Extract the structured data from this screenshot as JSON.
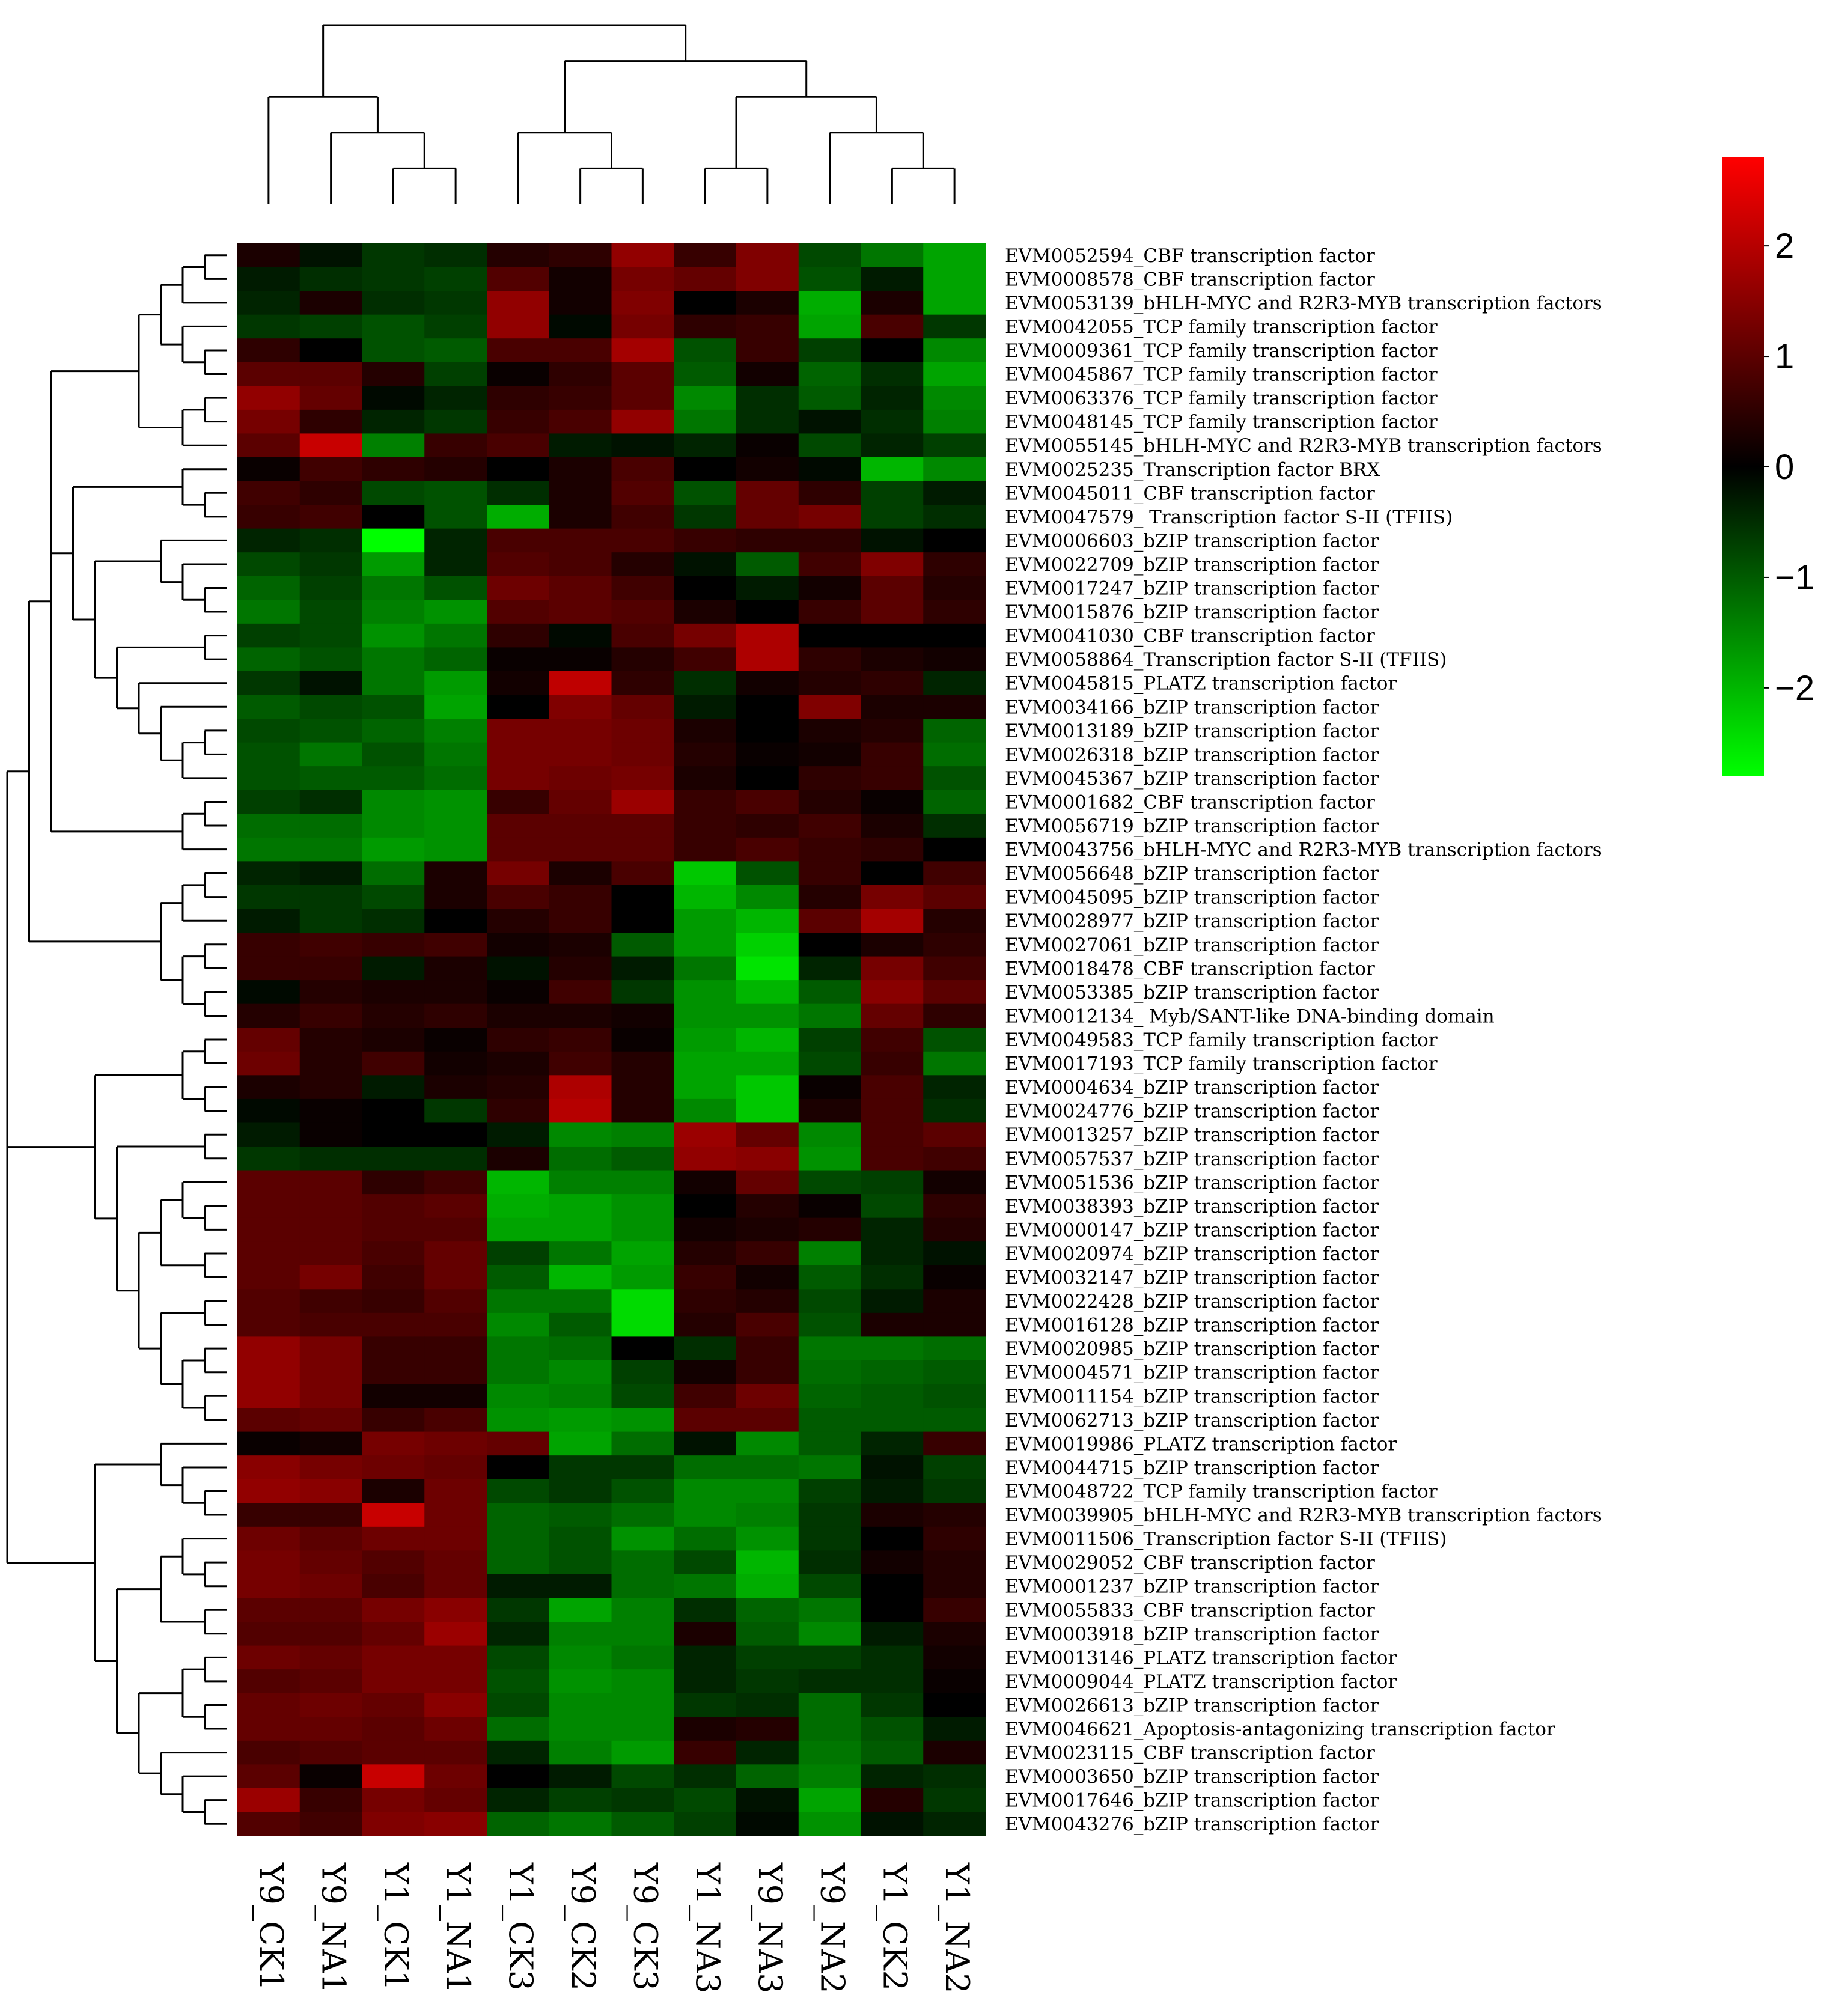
{
  "chart_data": {
    "type": "heatmap",
    "title": "",
    "xlabel": "",
    "ylabel": "",
    "columns": [
      "Y9_CK1",
      "Y9_NA1",
      "Y1_CK1",
      "Y1_NA1",
      "Y1_CK3",
      "Y9_CK2",
      "Y9_CK3",
      "Y1_NA3",
      "Y9_NA3",
      "Y9_NA2",
      "Y1_CK2",
      "Y1_NA2"
    ],
    "rows": [
      "EVM0052594_CBF transcription factor",
      "EVM0008578_CBF transcription factor",
      "EVM0053139_bHLH-MYC and R2R3-MYB transcription factors",
      "EVM0042055_TCP family transcription factor",
      "EVM0009361_TCP family transcription factor",
      "EVM0045867_TCP family transcription factor",
      "EVM0063376_TCP family transcription factor",
      "EVM0048145_TCP family transcription factor",
      "EVM0055145_bHLH-MYC and R2R3-MYB transcription factors",
      "EVM0025235_Transcription factor BRX",
      "EVM0045011_CBF transcription factor",
      "EVM0047579_ Transcription factor S-II (TFIIS)",
      "EVM0006603_bZIP transcription factor",
      "EVM0022709_bZIP transcription factor",
      "EVM0017247_bZIP transcription factor",
      "EVM0015876_bZIP transcription factor",
      "EVM0041030_CBF transcription factor",
      "EVM0058864_Transcription factor S-II (TFIIS)",
      "EVM0045815_PLATZ transcription factor",
      "EVM0034166_bZIP transcription factor",
      "EVM0013189_bZIP transcription factor",
      "EVM0026318_bZIP transcription factor",
      "EVM0045367_bZIP transcription factor",
      "EVM0001682_CBF transcription factor",
      "EVM0056719_bZIP transcription factor",
      "EVM0043756_bHLH-MYC and R2R3-MYB transcription factors",
      "EVM0056648_bZIP transcription factor",
      "EVM0045095_bZIP transcription factor",
      "EVM0028977_bZIP transcription factor",
      "EVM0027061_bZIP transcription factor",
      "EVM0018478_CBF transcription factor",
      "EVM0053385_bZIP transcription factor",
      "EVM0012134_ Myb/SANT-like DNA-binding domain",
      "EVM0049583_TCP family transcription factor",
      "EVM0017193_TCP family transcription factor",
      "EVM0004634_bZIP transcription factor",
      "EVM0024776_bZIP transcription factor",
      "EVM0013257_bZIP transcription factor",
      "EVM0057537_bZIP transcription factor",
      "EVM0051536_bZIP transcription factor",
      "EVM0038393_bZIP transcription factor",
      "EVM0000147_bZIP transcription factor",
      "EVM0020974_bZIP transcription factor",
      "EVM0032147_bZIP transcription factor",
      "EVM0022428_bZIP transcription factor",
      "EVM0016128_bZIP transcription factor",
      "EVM0020985_bZIP transcription factor",
      "EVM0004571_bZIP transcription factor",
      "EVM0011154_bZIP transcription factor",
      "EVM0062713_bZIP transcription factor",
      "EVM0019986_PLATZ transcription factor",
      "EVM0044715_bZIP transcription factor",
      "EVM0048722_TCP family transcription factor",
      "EVM0039905_bHLH-MYC and R2R3-MYB transcription factors",
      "EVM0011506_Transcription factor S-II (TFIIS)",
      "EVM0029052_CBF transcription factor",
      "EVM0001237_bZIP transcription factor",
      "EVM0055833_CBF transcription factor",
      "EVM0003918_bZIP transcription factor",
      "EVM0013146_PLATZ transcription factor",
      "EVM0009044_PLATZ transcription factor",
      "EVM0026613_bZIP transcription factor",
      "EVM0046621_Apoptosis-antagonizing transcription factor",
      "EVM0023115_CBF transcription factor",
      "EVM0003650_bZIP transcription factor",
      "EVM0017646_bZIP transcription factor",
      "EVM0043276_bZIP transcription factor"
    ],
    "values": [
      [
        0.3,
        -0.2,
        -0.6,
        -0.5,
        0.4,
        0.5,
        1.6,
        0.6,
        1.4,
        -0.8,
        -1.3,
        -1.8
      ],
      [
        -0.3,
        -0.5,
        -0.6,
        -0.7,
        0.9,
        0.2,
        1.3,
        1.1,
        1.4,
        -0.9,
        -0.3,
        -1.8
      ],
      [
        -0.4,
        0.3,
        -0.5,
        -0.6,
        1.6,
        0.2,
        1.4,
        0.0,
        0.3,
        -1.9,
        0.3,
        -1.8
      ],
      [
        -0.6,
        -0.7,
        -0.9,
        -0.7,
        1.6,
        -0.1,
        1.3,
        0.5,
        0.6,
        -1.8,
        0.8,
        -0.6
      ],
      [
        0.5,
        0.0,
        -0.9,
        -1.0,
        0.8,
        0.8,
        1.8,
        -0.9,
        0.6,
        -0.7,
        0.0,
        -1.5
      ],
      [
        1.0,
        1.0,
        0.4,
        -0.7,
        0.1,
        0.5,
        1.0,
        -1.0,
        0.2,
        -1.1,
        -0.5,
        -1.8
      ],
      [
        1.6,
        1.1,
        -0.1,
        -0.4,
        0.5,
        0.6,
        1.0,
        -1.5,
        -0.5,
        -1.0,
        -0.4,
        -1.5
      ],
      [
        1.3,
        0.5,
        -0.4,
        -0.6,
        0.6,
        0.8,
        1.6,
        -1.3,
        -0.5,
        -0.2,
        -0.5,
        -1.4
      ],
      [
        1.0,
        2.2,
        -1.4,
        0.6,
        0.8,
        -0.3,
        -0.2,
        -0.4,
        0.1,
        -0.8,
        -0.4,
        -0.7
      ],
      [
        0.1,
        0.7,
        0.5,
        0.4,
        0.0,
        0.3,
        0.8,
        0.0,
        0.2,
        -0.1,
        -2.0,
        -1.5
      ],
      [
        0.7,
        0.5,
        -0.8,
        -0.9,
        -0.5,
        0.3,
        0.9,
        -0.9,
        1.1,
        0.5,
        -0.7,
        -0.3
      ],
      [
        0.6,
        0.7,
        0.0,
        -0.9,
        -1.9,
        0.3,
        0.7,
        -0.6,
        1.1,
        1.3,
        -0.7,
        -0.5
      ],
      [
        -0.4,
        -0.5,
        -2.8,
        -0.4,
        0.8,
        0.8,
        0.8,
        0.6,
        0.5,
        0.5,
        -0.2,
        0.0
      ],
      [
        -0.8,
        -0.6,
        -1.7,
        -0.4,
        0.9,
        0.8,
        0.4,
        -0.2,
        -1.0,
        0.7,
        1.4,
        0.5
      ],
      [
        -1.1,
        -0.7,
        -1.3,
        -0.9,
        1.2,
        1.0,
        0.7,
        0.0,
        -0.3,
        0.2,
        1.0,
        0.4
      ],
      [
        -1.3,
        -0.8,
        -1.4,
        -1.6,
        0.9,
        1.0,
        0.9,
        0.3,
        0.0,
        0.6,
        1.0,
        0.5
      ],
      [
        -0.7,
        -0.8,
        -1.6,
        -1.3,
        0.5,
        -0.1,
        0.8,
        1.3,
        1.9,
        0.0,
        0.0,
        0.0
      ],
      [
        -1.1,
        -0.9,
        -1.3,
        -1.1,
        0.1,
        0.1,
        0.4,
        0.7,
        1.9,
        0.5,
        0.3,
        0.2
      ],
      [
        -0.6,
        -0.2,
        -1.3,
        -1.7,
        0.2,
        2.1,
        0.5,
        -0.5,
        0.2,
        0.4,
        0.5,
        -0.4
      ],
      [
        -1.0,
        -0.8,
        -0.9,
        -1.8,
        0.0,
        1.4,
        1.1,
        -0.3,
        0.0,
        1.4,
        0.3,
        0.3
      ],
      [
        -0.8,
        -0.9,
        -1.1,
        -1.4,
        1.3,
        1.3,
        1.2,
        0.3,
        0.0,
        0.3,
        0.4,
        -1.1
      ],
      [
        -0.9,
        -1.3,
        -0.9,
        -1.3,
        1.3,
        1.3,
        1.2,
        0.4,
        0.1,
        0.2,
        0.6,
        -1.2
      ],
      [
        -0.9,
        -1.0,
        -1.0,
        -1.2,
        1.3,
        1.2,
        1.3,
        0.3,
        0.0,
        0.5,
        0.6,
        -0.9
      ],
      [
        -0.7,
        -0.5,
        -1.5,
        -1.6,
        0.6,
        1.1,
        1.7,
        0.6,
        0.8,
        0.4,
        0.1,
        -1.1
      ],
      [
        -1.2,
        -1.2,
        -1.5,
        -1.6,
        1.0,
        1.0,
        1.0,
        0.6,
        0.5,
        0.7,
        0.3,
        -0.5
      ],
      [
        -1.3,
        -1.3,
        -1.7,
        -1.6,
        1.0,
        1.0,
        1.0,
        0.6,
        0.8,
        0.6,
        0.5,
        0.0
      ],
      [
        -0.4,
        -0.3,
        -1.2,
        0.3,
        1.3,
        0.3,
        0.8,
        -2.2,
        -0.9,
        0.6,
        0.0,
        0.7
      ],
      [
        -0.6,
        -0.6,
        -0.8,
        0.3,
        0.8,
        0.6,
        0.0,
        -2.0,
        -1.5,
        0.4,
        1.3,
        1.0
      ],
      [
        -0.3,
        -0.6,
        -0.5,
        0.0,
        0.4,
        0.6,
        0.0,
        -1.7,
        -2.0,
        1.0,
        1.8,
        0.4
      ],
      [
        0.6,
        0.7,
        0.6,
        0.7,
        0.2,
        0.3,
        -1.0,
        -1.7,
        -2.3,
        0.0,
        0.3,
        0.5
      ],
      [
        0.6,
        0.6,
        -0.3,
        0.3,
        -0.2,
        0.4,
        -0.3,
        -1.3,
        -2.5,
        -0.4,
        1.3,
        0.7
      ],
      [
        -0.1,
        0.4,
        0.3,
        0.3,
        0.1,
        0.7,
        -0.6,
        -1.6,
        -2.0,
        -1.0,
        1.5,
        1.0
      ],
      [
        0.4,
        0.6,
        0.4,
        0.5,
        0.3,
        0.3,
        0.2,
        -1.6,
        -1.6,
        -1.3,
        1.1,
        0.5
      ],
      [
        1.1,
        0.4,
        0.3,
        0.1,
        0.5,
        0.6,
        0.1,
        -1.7,
        -2.0,
        -0.7,
        0.7,
        -0.9
      ],
      [
        1.2,
        0.4,
        0.7,
        0.2,
        0.3,
        0.7,
        0.4,
        -1.8,
        -1.8,
        -0.8,
        0.6,
        -1.3
      ],
      [
        0.3,
        0.4,
        -0.3,
        0.3,
        0.4,
        1.9,
        0.4,
        -1.8,
        -2.2,
        0.1,
        0.8,
        -0.4
      ],
      [
        -0.1,
        0.1,
        0.0,
        -0.6,
        0.5,
        2.0,
        0.4,
        -1.5,
        -2.2,
        0.3,
        0.8,
        -0.5
      ],
      [
        -0.3,
        0.1,
        0.0,
        0.0,
        -0.3,
        -1.5,
        -1.4,
        1.7,
        1.1,
        -1.5,
        0.8,
        1.0
      ],
      [
        -0.6,
        -0.5,
        -0.5,
        -0.5,
        0.3,
        -1.2,
        -1.0,
        1.6,
        1.5,
        -1.6,
        0.8,
        0.7
      ],
      [
        1.0,
        1.0,
        0.5,
        0.7,
        -2.0,
        -1.4,
        -1.4,
        0.2,
        1.1,
        -0.8,
        -0.7,
        0.2
      ],
      [
        1.0,
        1.0,
        0.9,
        1.0,
        -1.9,
        -1.8,
        -1.6,
        0.0,
        0.4,
        0.1,
        -0.8,
        0.5
      ],
      [
        1.0,
        1.0,
        0.9,
        0.9,
        -1.8,
        -1.8,
        -1.6,
        0.2,
        0.3,
        0.4,
        -0.4,
        0.4
      ],
      [
        1.0,
        1.0,
        0.8,
        1.1,
        -0.7,
        -1.3,
        -1.8,
        0.4,
        0.6,
        -1.4,
        -0.4,
        -0.2
      ],
      [
        1.0,
        1.3,
        0.7,
        1.1,
        -1.0,
        -2.0,
        -1.7,
        0.6,
        0.2,
        -1.0,
        -0.5,
        0.1
      ],
      [
        0.9,
        0.7,
        0.6,
        0.9,
        -1.3,
        -1.3,
        -2.4,
        0.5,
        0.4,
        -0.8,
        -0.3,
        0.3
      ],
      [
        0.9,
        0.8,
        0.8,
        0.8,
        -1.5,
        -1.0,
        -2.4,
        0.4,
        0.8,
        -0.9,
        0.3,
        0.3
      ],
      [
        1.6,
        1.3,
        0.6,
        0.6,
        -1.3,
        -1.2,
        0.0,
        -0.5,
        0.6,
        -1.3,
        -1.3,
        -1.2
      ],
      [
        1.6,
        1.3,
        0.6,
        0.6,
        -1.3,
        -1.5,
        -0.7,
        0.2,
        0.6,
        -1.2,
        -1.1,
        -1.0
      ],
      [
        1.6,
        1.3,
        0.2,
        0.2,
        -1.5,
        -1.4,
        -0.8,
        0.7,
        1.2,
        -1.1,
        -1.0,
        -0.9
      ],
      [
        1.0,
        1.1,
        0.6,
        0.8,
        -1.6,
        -1.7,
        -1.6,
        1.0,
        1.0,
        -1.0,
        -1.0,
        -1.0
      ],
      [
        0.1,
        0.2,
        1.3,
        1.2,
        1.1,
        -1.8,
        -1.2,
        -0.2,
        -1.5,
        -1.0,
        -0.4,
        0.6
      ],
      [
        1.5,
        1.3,
        1.2,
        1.1,
        0.0,
        -0.6,
        -0.6,
        -1.2,
        -1.2,
        -1.3,
        -0.2,
        -0.7
      ],
      [
        1.6,
        1.5,
        0.3,
        1.2,
        -0.8,
        -0.6,
        -0.9,
        -1.5,
        -1.5,
        -0.7,
        -0.3,
        -0.6
      ],
      [
        0.6,
        0.6,
        2.2,
        1.2,
        -1.1,
        -1.0,
        -1.2,
        -1.5,
        -1.4,
        -0.6,
        0.3,
        0.4
      ],
      [
        1.2,
        1.0,
        1.2,
        1.2,
        -1.1,
        -0.9,
        -1.6,
        -1.2,
        -1.6,
        -0.6,
        0.0,
        0.5
      ],
      [
        1.3,
        1.1,
        0.9,
        1.1,
        -1.1,
        -0.9,
        -1.2,
        -0.8,
        -2.0,
        -0.5,
        0.2,
        0.4
      ],
      [
        1.3,
        1.2,
        0.8,
        1.1,
        -0.3,
        -0.3,
        -1.2,
        -1.3,
        -1.9,
        -0.8,
        0.0,
        0.4
      ],
      [
        1.0,
        1.0,
        1.3,
        1.5,
        -0.6,
        -1.8,
        -1.4,
        -0.5,
        -1.1,
        -1.3,
        0.0,
        0.6
      ],
      [
        0.9,
        0.9,
        1.1,
        1.7,
        -0.4,
        -1.4,
        -1.4,
        0.3,
        -1.0,
        -1.5,
        -0.3,
        0.3
      ],
      [
        1.2,
        1.1,
        1.3,
        1.3,
        -0.8,
        -1.5,
        -1.3,
        -0.4,
        -0.7,
        -0.7,
        -0.5,
        0.2
      ],
      [
        0.9,
        1.0,
        1.3,
        1.3,
        -0.9,
        -1.6,
        -1.5,
        -0.4,
        -0.6,
        -0.5,
        -0.5,
        0.1
      ],
      [
        1.1,
        1.2,
        1.1,
        1.5,
        -0.8,
        -1.5,
        -1.5,
        -0.6,
        -0.5,
        -1.2,
        -0.6,
        0.0
      ],
      [
        1.1,
        1.1,
        1.0,
        1.2,
        -1.2,
        -1.5,
        -1.5,
        0.3,
        0.4,
        -1.2,
        -0.9,
        -0.3
      ],
      [
        0.8,
        0.9,
        1.0,
        1.0,
        -0.4,
        -1.4,
        -1.7,
        0.6,
        -0.4,
        -1.3,
        -1.0,
        0.3
      ],
      [
        1.0,
        0.1,
        2.2,
        1.2,
        0.0,
        -0.3,
        -0.8,
        -0.5,
        -1.1,
        -1.4,
        -0.4,
        -0.5
      ],
      [
        1.7,
        0.6,
        1.3,
        1.1,
        -0.4,
        -0.7,
        -0.6,
        -0.8,
        -0.2,
        -1.8,
        0.4,
        -0.6
      ],
      [
        0.9,
        0.7,
        1.4,
        1.5,
        -1.1,
        -1.3,
        -1.0,
        -0.7,
        -0.1,
        -1.6,
        -0.2,
        -0.4
      ]
    ],
    "colorbar": {
      "ticks": [
        2,
        1,
        0,
        -1,
        -2
      ],
      "tick_labels": [
        "2",
        "1",
        "0",
        "−1",
        "−2"
      ],
      "min": -2.8,
      "max": 2.8
    },
    "colors": {
      "high": "#ff0000",
      "mid": "#000000",
      "low": "#00ff00"
    },
    "column_dendrogram": "((Y9_CK1,(Y9_NA1,(Y1_CK1,Y1_NA1))),((Y1_CK3,(Y9_CK2,Y9_CK3)),((Y1_NA3,Y9_NA3),(Y9_NA2,(Y1_CK2,Y1_NA2)))))"
  }
}
